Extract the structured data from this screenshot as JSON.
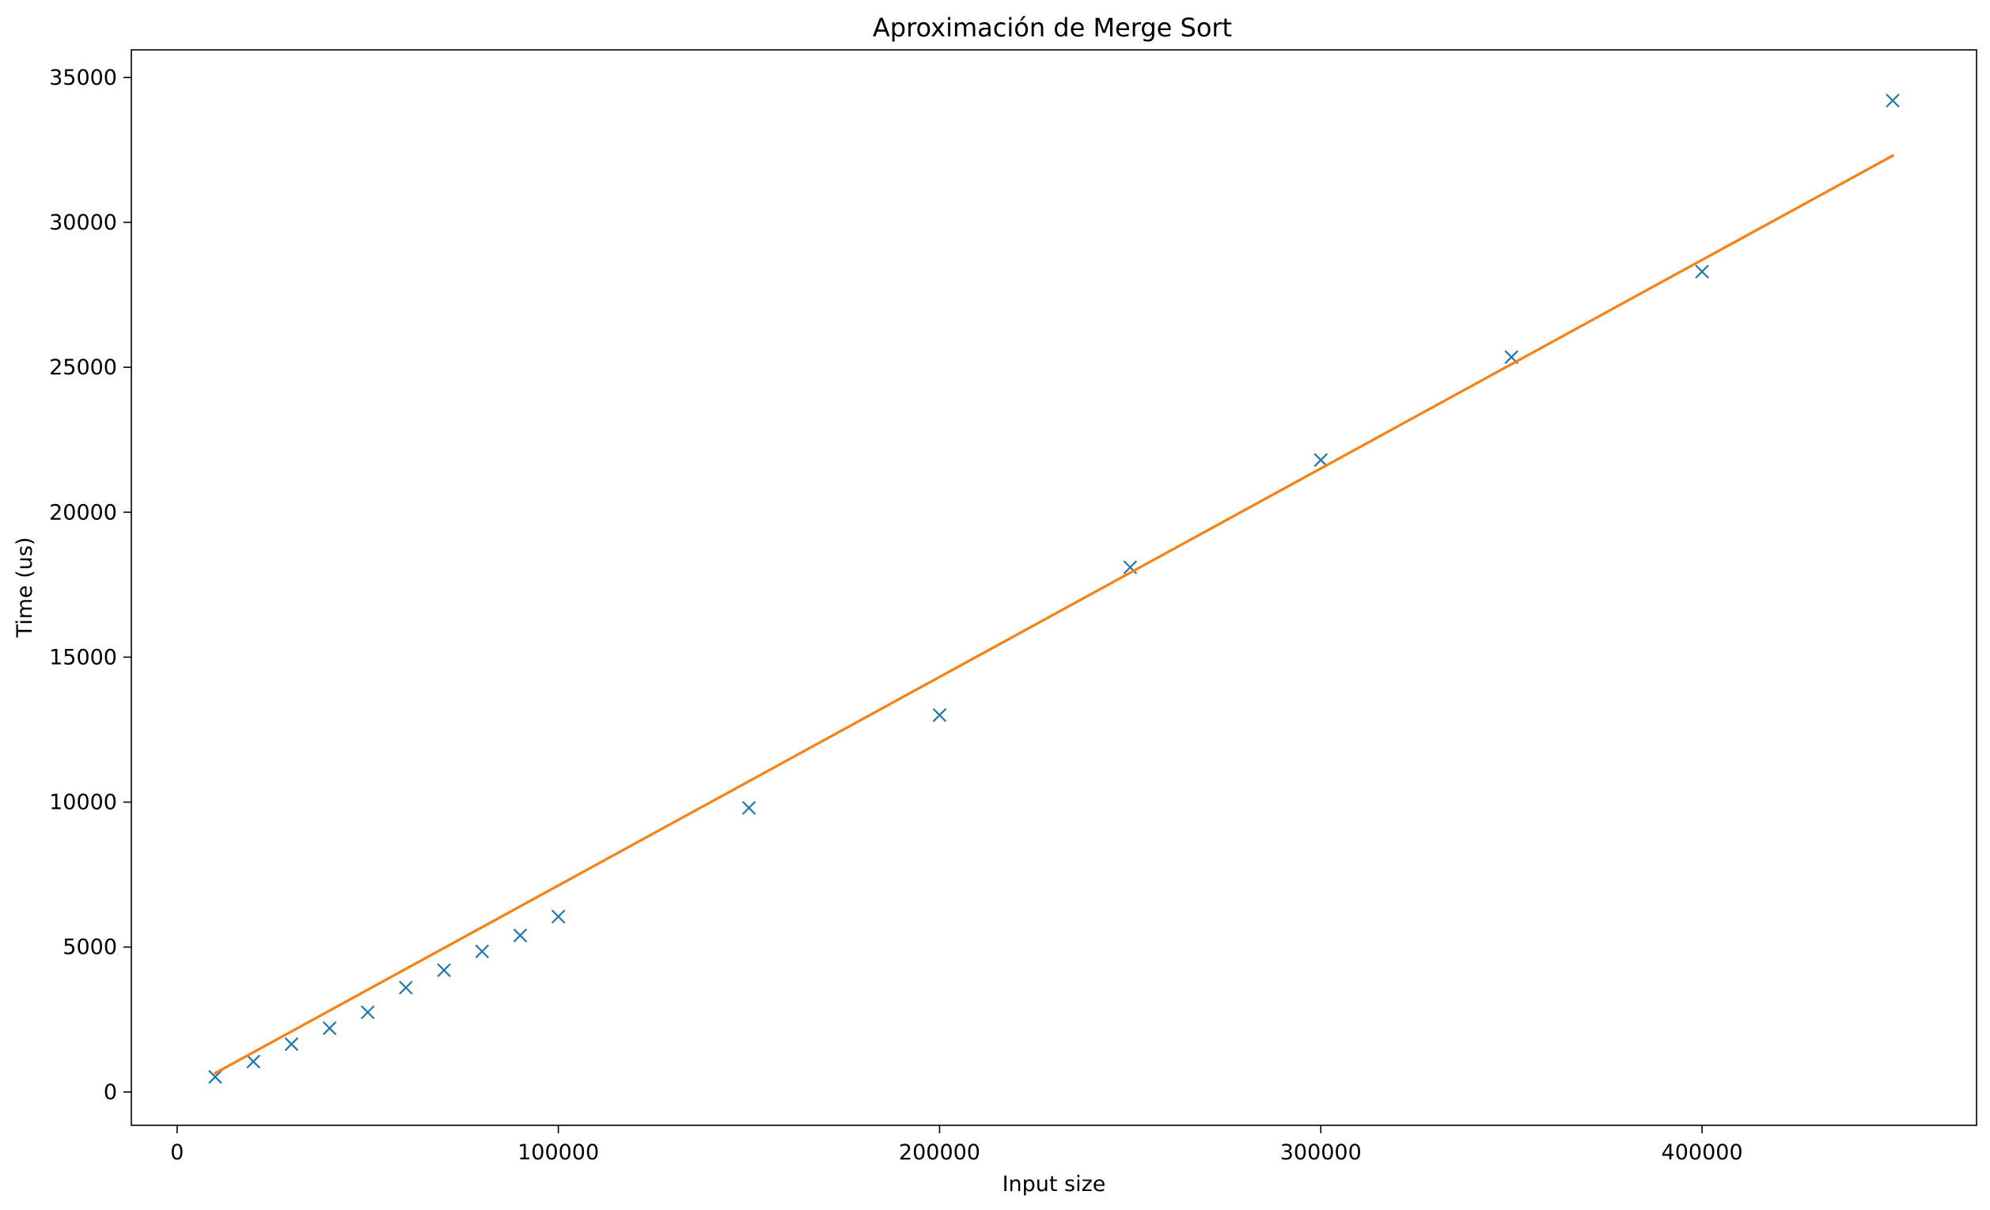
{
  "chart_data": {
    "type": "scatter",
    "title": "Aproximación de Merge Sort",
    "xlabel": "Input size",
    "ylabel": "Time (us)",
    "xlim": [
      -12000,
      472000
    ],
    "ylim": [
      -1150,
      35950
    ],
    "xticks": [
      0,
      100000,
      200000,
      300000,
      400000
    ],
    "xtick_labels": [
      "0",
      "100000",
      "200000",
      "300000",
      "400000"
    ],
    "yticks": [
      0,
      5000,
      10000,
      15000,
      20000,
      25000,
      30000,
      35000
    ],
    "ytick_labels": [
      "0",
      "5000",
      "10000",
      "15000",
      "20000",
      "25000",
      "30000",
      "35000"
    ],
    "grid": false,
    "series": [
      {
        "kind": "scatter",
        "marker": "x",
        "color": "#1f77b4",
        "x": [
          10000,
          20000,
          30000,
          40000,
          50000,
          60000,
          70000,
          80000,
          90000,
          100000,
          150000,
          200000,
          250000,
          300000,
          350000,
          400000,
          450000
        ],
        "y": [
          520,
          1050,
          1650,
          2200,
          2750,
          3600,
          4200,
          4850,
          5400,
          6050,
          9800,
          13000,
          18100,
          21800,
          25350,
          28300,
          34200
        ]
      },
      {
        "kind": "line",
        "color": "#ff7f0e",
        "x": [
          10000,
          450000
        ],
        "y": [
          650,
          32300
        ]
      }
    ]
  }
}
